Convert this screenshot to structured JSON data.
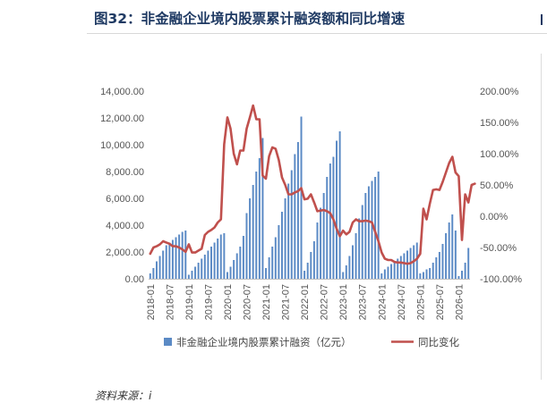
{
  "header": {
    "title": "图32：非金融企业境内股票累计融资额和同比增速"
  },
  "footer": {
    "source": "资料来源：i"
  },
  "chart_data": {
    "type": "bar+line",
    "y_left": {
      "min": 0,
      "max": 14000,
      "step": 2000,
      "ticks": [
        "0.00",
        "2,000.00",
        "4,000.00",
        "6,000.00",
        "8,000.00",
        "10,000.00",
        "12,000.00",
        "14,000.00"
      ]
    },
    "y_right": {
      "min": -100,
      "max": 200,
      "step": 50,
      "ticks": [
        "-100.00%",
        "-50.00%",
        "0.00%",
        "50.00%",
        "100.00%",
        "150.00%",
        "200.00%"
      ]
    },
    "x_ticks": [
      "2018-01",
      "2018-07",
      "2019-01",
      "2019-07",
      "2020-01",
      "2020-07",
      "2021-01",
      "2021-07",
      "2022-01",
      "2022-07",
      "2023-01",
      "2023-07",
      "2024-01",
      "2024-07",
      "2025-01",
      "2025-07",
      "2026-01"
    ],
    "series": [
      {
        "name": "非金融企业境内股票累计融资（亿元）",
        "kind": "bar",
        "axis": "left",
        "color": "#5b8ac5",
        "values": [
          400,
          800,
          1300,
          1700,
          2100,
          2500,
          2700,
          2900,
          3100,
          3300,
          3500,
          3600,
          300,
          600,
          900,
          1200,
          1500,
          1800,
          2100,
          2400,
          2700,
          3000,
          3300,
          3400,
          500,
          900,
          1400,
          1900,
          2400,
          3200,
          4900,
          6000,
          7000,
          8000,
          9000,
          10500,
          800,
          1600,
          2400,
          3100,
          4000,
          5000,
          6000,
          7100,
          8100,
          9300,
          10200,
          12100,
          600,
          1200,
          2000,
          2800,
          4200,
          5300,
          6400,
          7600,
          8600,
          9100,
          10300,
          11000,
          500,
          1000,
          1700,
          2500,
          3400,
          4500,
          5500,
          6400,
          6900,
          7300,
          7600,
          8000,
          400,
          700,
          900,
          1100,
          1300,
          1500,
          1700,
          1900,
          2100,
          2300,
          2500,
          2700,
          400,
          500,
          700,
          800,
          1200,
          1600,
          2000,
          2600,
          3400,
          4200,
          4800,
          3600,
          200,
          600,
          1200,
          2300
        ]
      },
      {
        "name": "同比变化",
        "kind": "line",
        "axis": "right",
        "color": "#c0504d",
        "values": [
          -60,
          -50,
          -48,
          -45,
          -40,
          -42,
          -44,
          -48,
          -48,
          -50,
          -53,
          -57,
          -45,
          -58,
          -58,
          -55,
          -52,
          -30,
          -25,
          -22,
          -18,
          -10,
          -5,
          115,
          158,
          140,
          100,
          83,
          105,
          105,
          140,
          158,
          177,
          155,
          155,
          65,
          60,
          96,
          110,
          108,
          90,
          62,
          50,
          35,
          35,
          38,
          40,
          45,
          27,
          28,
          35,
          22,
          8,
          9,
          10,
          8,
          5,
          -5,
          -20,
          -32,
          -23,
          -29,
          -25,
          -10,
          -5,
          -8,
          -8,
          -7,
          -8,
          -10,
          -25,
          -40,
          -58,
          -68,
          -70,
          -70,
          -73,
          -74,
          -74,
          -75,
          -76,
          -75,
          -72,
          -68,
          -60,
          12,
          -5,
          20,
          42,
          43,
          42,
          55,
          70,
          85,
          95,
          70,
          64,
          -38,
          35,
          22,
          50,
          52
        ]
      }
    ],
    "legend": {
      "placement": "bottom"
    }
  }
}
